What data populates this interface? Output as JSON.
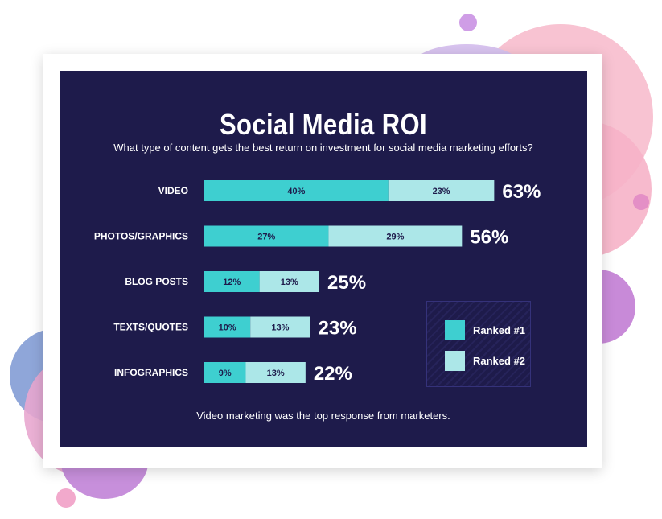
{
  "colors": {
    "panel": "#1e1b4b",
    "ranked1": "#3ecfd0",
    "ranked2": "#ace7e8",
    "bar_label": "#1e1b4b",
    "text": "#ffffff"
  },
  "chart_data": {
    "type": "bar",
    "orientation": "horizontal",
    "stacked": true,
    "title": "Social Media ROI",
    "subtitle": "What type of content gets the best return on investment for social media marketing efforts?",
    "categories": [
      "VIDEO",
      "PHOTOS/GRAPHICS",
      "BLOG POSTS",
      "TEXTS/QUOTES",
      "INFOGRAPHICS"
    ],
    "series": [
      {
        "name": "Ranked #1",
        "values": [
          40,
          27,
          12,
          10,
          9
        ],
        "labels": [
          "40%",
          "27%",
          "12%",
          "10%",
          "9%"
        ]
      },
      {
        "name": "Ranked #2",
        "values": [
          23,
          29,
          13,
          13,
          13
        ],
        "labels": [
          "23%",
          "29%",
          "13%",
          "13%",
          "13%"
        ]
      }
    ],
    "totals": [
      "63%",
      "56%",
      "25%",
      "23%",
      "22%"
    ],
    "legend_position": "right",
    "footer": "Video marketing was the top response from marketers."
  }
}
